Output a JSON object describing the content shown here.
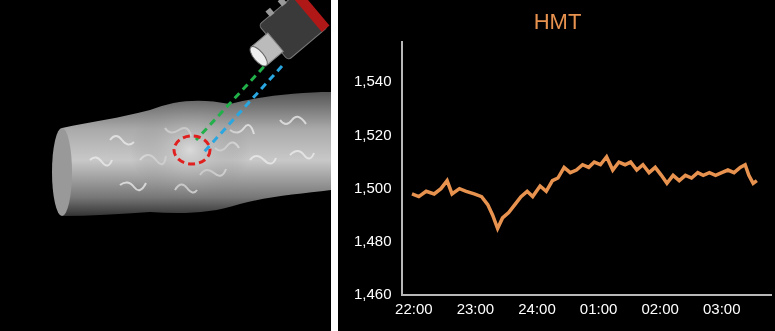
{
  "chart_data": {
    "type": "line",
    "title": "HMT",
    "color": "#e8924f",
    "x": [
      21.97,
      22.08,
      22.2,
      22.33,
      22.44,
      22.54,
      22.62,
      22.74,
      22.85,
      22.98,
      23.1,
      23.2,
      23.28,
      23.36,
      23.44,
      23.54,
      23.64,
      23.74,
      23.84,
      23.93,
      24.05,
      24.15,
      24.25,
      24.34,
      24.44,
      24.54,
      24.64,
      24.74,
      24.84,
      24.93,
      25.03,
      25.13,
      25.23,
      25.33,
      25.43,
      25.52,
      25.62,
      25.72,
      25.82,
      25.92,
      26.02,
      26.11,
      26.21,
      26.31,
      26.41,
      26.51,
      26.61,
      26.7,
      26.8,
      26.9,
      27.0,
      27.1,
      27.2,
      27.3,
      27.38,
      27.44,
      27.51,
      27.57
    ],
    "values": [
      1498,
      1497,
      1499,
      1498,
      1500,
      1503,
      1498,
      1500,
      1499,
      1498,
      1497,
      1494,
      1490,
      1485,
      1489,
      1491,
      1494,
      1497,
      1499,
      1497,
      1501,
      1499,
      1503,
      1504,
      1508,
      1506,
      1507,
      1509,
      1508,
      1510,
      1509,
      1512,
      1507,
      1510,
      1509,
      1510,
      1507,
      1509,
      1506,
      1508,
      1505,
      1502,
      1505,
      1503,
      1505,
      1504,
      1506,
      1505,
      1506,
      1505,
      1506,
      1507,
      1506,
      1508,
      1509,
      1505,
      1502,
      1503
    ],
    "xlim": [
      21.8,
      27.8
    ],
    "xticks": [
      {
        "value": 22,
        "label": "22:00"
      },
      {
        "value": 23,
        "label": "23:00"
      },
      {
        "value": 24,
        "label": "24:00"
      },
      {
        "value": 25,
        "label": "01:00"
      },
      {
        "value": 26,
        "label": "02:00"
      },
      {
        "value": 27,
        "label": "03:00"
      }
    ],
    "ylim": [
      1460,
      1555
    ],
    "yticks": [
      {
        "value": 1460,
        "label": "1,460"
      },
      {
        "value": 1480,
        "label": "1,480"
      },
      {
        "value": 1500,
        "label": "1,500"
      },
      {
        "value": 1520,
        "label": "1,520"
      },
      {
        "value": 1540,
        "label": "1,540"
      }
    ],
    "grid": false
  }
}
